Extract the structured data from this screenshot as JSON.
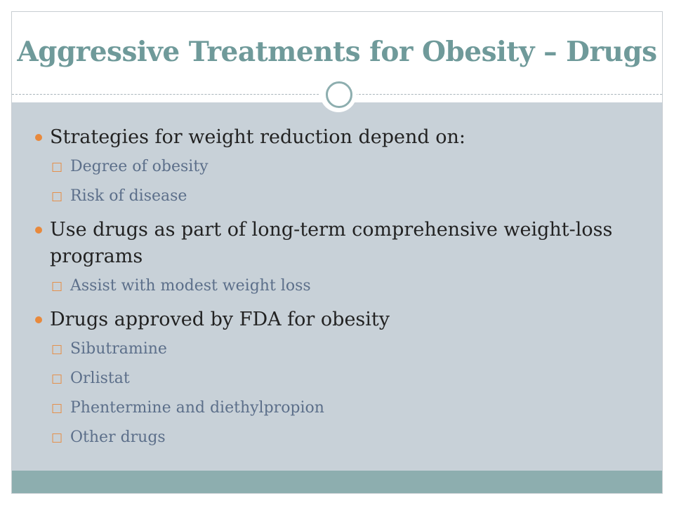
{
  "slide": {
    "title": "Aggressive Treatments for Obesity – Drugs",
    "accent_color": "#8daeaf",
    "bullet_color": "#e8893c",
    "bullets": [
      {
        "text": "Strategies for weight reduction depend on:",
        "subitems": [
          "Degree of obesity",
          "Risk of disease"
        ]
      },
      {
        "text": "Use drugs as part of long-term comprehensive weight-loss programs",
        "subitems": [
          "Assist with modest weight loss"
        ]
      },
      {
        "text": "Drugs approved by FDA for obesity",
        "subitems": [
          "Sibutramine",
          "Orlistat",
          "Phentermine and diethylpropion",
          "Other drugs"
        ]
      }
    ]
  }
}
